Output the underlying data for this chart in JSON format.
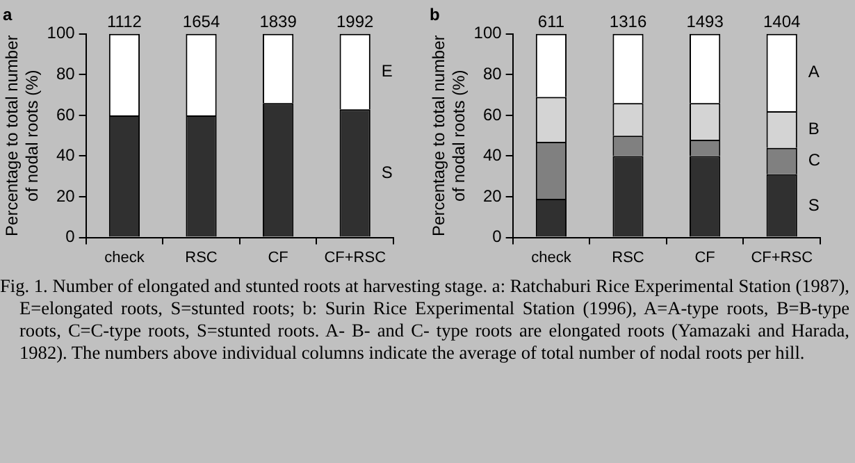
{
  "chart_data": [
    {
      "type": "bar",
      "title": "a",
      "ylabel": "Percentage to total number\nof nodal roots (%)",
      "categories": [
        "check",
        "RSC",
        "CF",
        "CF+RSC"
      ],
      "stacked": true,
      "ylim": [
        0,
        100
      ],
      "yticks": [
        0,
        20,
        40,
        60,
        80,
        100
      ],
      "grid": false,
      "legend": false,
      "series": [
        {
          "name": "S",
          "color": "#303030",
          "values": [
            60,
            60,
            66,
            63
          ]
        },
        {
          "name": "E",
          "color": "#ffffff",
          "values": [
            40,
            40,
            34,
            37
          ]
        }
      ],
      "annotations": [
        {
          "text": "1112",
          "x": "check",
          "y": 100
        },
        {
          "text": "1654",
          "x": "RSC",
          "y": 100
        },
        {
          "text": "1839",
          "x": "CF",
          "y": 100
        },
        {
          "text": "1992",
          "x": "CF+RSC",
          "y": 100
        }
      ]
    },
    {
      "type": "bar",
      "title": "b",
      "ylabel": "Percentage to total number\nof nodal roots (%)",
      "categories": [
        "check",
        "RSC",
        "CF",
        "CF+RSC"
      ],
      "stacked": true,
      "ylim": [
        0,
        100
      ],
      "yticks": [
        0,
        20,
        40,
        60,
        80,
        100
      ],
      "grid": false,
      "legend": false,
      "series": [
        {
          "name": "S",
          "color": "#303030",
          "values": [
            19,
            40,
            40,
            31
          ]
        },
        {
          "name": "C",
          "color": "#808080",
          "values": [
            28,
            10,
            8,
            13
          ]
        },
        {
          "name": "B",
          "color": "#d4d4d4",
          "values": [
            22,
            16,
            18,
            18
          ]
        },
        {
          "name": "A",
          "color": "#ffffff",
          "values": [
            31,
            34,
            34,
            38
          ]
        }
      ],
      "annotations": [
        {
          "text": "611",
          "x": "check",
          "y": 100
        },
        {
          "text": "1316",
          "x": "RSC",
          "y": 100
        },
        {
          "text": "1493",
          "x": "CF",
          "y": 100
        },
        {
          "text": "1404",
          "x": "CF+RSC",
          "y": 100
        },
        "Fig. 1. Number of elongated and stunted roots at harvesting stage. a: Ratchaburi Rice Experimental Station (1987), E=elongated roots, S=stunted roots; b: Surin Rice Experimental Station (1996), A=A-type roots, B=B-type roots, C=C-type roots, S=stunted roots. A- B- and C- type roots are elongated roots (Yamazaki and Harada, 1982).  The numbers above individual columns indicate the average of total number of nodal roots per hill."
      ]
    }
  ]
}
